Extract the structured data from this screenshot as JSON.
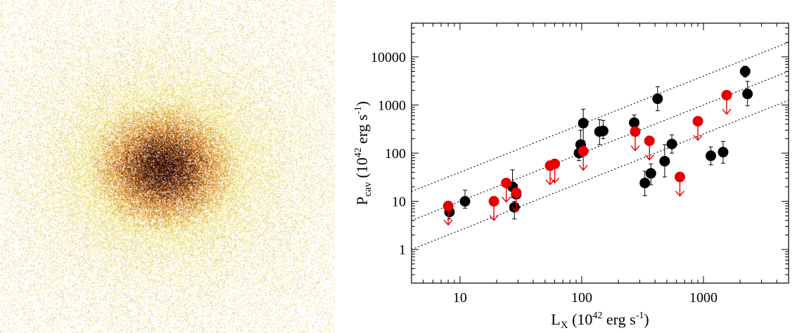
{
  "image_panel": {
    "description_icon": "xray-cluster-image",
    "colors": {
      "light": "#f2e6a8",
      "mid": "#d9902e",
      "dark": "#5a1e06",
      "core": "#1a0500"
    }
  },
  "chart_data": {
    "type": "scatter",
    "x_scale": "log",
    "y_scale": "log",
    "xlim": [
      4,
      5000
    ],
    "ylim": [
      0.2,
      50000
    ],
    "xticks": [
      10,
      100,
      1000
    ],
    "xtick_labels": [
      "10",
      "100",
      "1000"
    ],
    "yticks": [
      1,
      10,
      100,
      1000,
      10000
    ],
    "ytick_labels": [
      "1",
      "10",
      "100",
      "1000",
      "10000"
    ],
    "xlabel": {
      "main": "L",
      "sub": "X",
      "rest": " (10",
      "sup": "42",
      "units": " erg s",
      "unit_sup": "-1",
      "close": ")"
    },
    "ylabel": {
      "main": "P",
      "sub": "cav",
      "rest": " (10",
      "sup": "42",
      "units": " erg s",
      "unit_sup": "-1",
      "close": ")"
    },
    "grid": false,
    "series": [
      {
        "color": "#000000",
        "marker": "filled-circle",
        "points": [
          {
            "x": 8.2,
            "y": 6,
            "ylo": 4.3,
            "yhi": 8
          },
          {
            "x": 11,
            "y": 10,
            "ylo": 7.2,
            "yhi": 17
          },
          {
            "x": 27,
            "y": 20,
            "ylo": 12,
            "yhi": 45
          },
          {
            "x": 28,
            "y": 7.5,
            "ylo": 4.3,
            "yhi": 10
          },
          {
            "x": 29,
            "y": 14,
            "ylo": 9,
            "yhi": 22
          },
          {
            "x": 95,
            "y": 100,
            "ylo": 70,
            "yhi": 120
          },
          {
            "x": 98,
            "y": 150,
            "ylo": 100,
            "yhi": 300
          },
          {
            "x": 103,
            "y": 420,
            "ylo": 180,
            "yhi": 820
          },
          {
            "x": 140,
            "y": 280,
            "ylo": 150,
            "yhi": 500
          },
          {
            "x": 150,
            "y": 290,
            "ylo": 200,
            "yhi": 480
          },
          {
            "x": 270,
            "y": 430,
            "ylo": 320,
            "yhi": 620
          },
          {
            "x": 330,
            "y": 24,
            "ylo": 13,
            "yhi": 42
          },
          {
            "x": 370,
            "y": 38,
            "ylo": 22,
            "yhi": 60
          },
          {
            "x": 420,
            "y": 1350,
            "ylo": 760,
            "yhi": 2400
          },
          {
            "x": 480,
            "y": 68,
            "ylo": 32,
            "yhi": 150
          },
          {
            "x": 550,
            "y": 155,
            "ylo": 100,
            "yhi": 240
          },
          {
            "x": 1150,
            "y": 88,
            "ylo": 57,
            "yhi": 135
          },
          {
            "x": 1450,
            "y": 105,
            "ylo": 62,
            "yhi": 175
          },
          {
            "x": 2200,
            "y": 5000,
            "ylo": 3800,
            "yhi": 6400
          },
          {
            "x": 2300,
            "y": 1700,
            "ylo": 960,
            "yhi": 3100
          }
        ]
      },
      {
        "color": "#e60000",
        "marker": "filled-circle-upper-limit",
        "points": [
          {
            "x": 8,
            "y": 8
          },
          {
            "x": 19,
            "y": 10
          },
          {
            "x": 24,
            "y": 24
          },
          {
            "x": 29,
            "y": 15
          },
          {
            "x": 55,
            "y": 55
          },
          {
            "x": 60,
            "y": 60
          },
          {
            "x": 103,
            "y": 110
          },
          {
            "x": 275,
            "y": 280
          },
          {
            "x": 360,
            "y": 180
          },
          {
            "x": 640,
            "y": 32
          },
          {
            "x": 900,
            "y": 460
          },
          {
            "x": 1550,
            "y": 1600
          }
        ]
      }
    ],
    "reference_lines": [
      {
        "style": "dotted",
        "y_at_x1": 4,
        "slope": 1
      },
      {
        "style": "dotted",
        "y_at_x1": 1,
        "slope": 1
      },
      {
        "style": "dotted",
        "y_at_x1": 0.25,
        "slope": 1
      }
    ]
  }
}
